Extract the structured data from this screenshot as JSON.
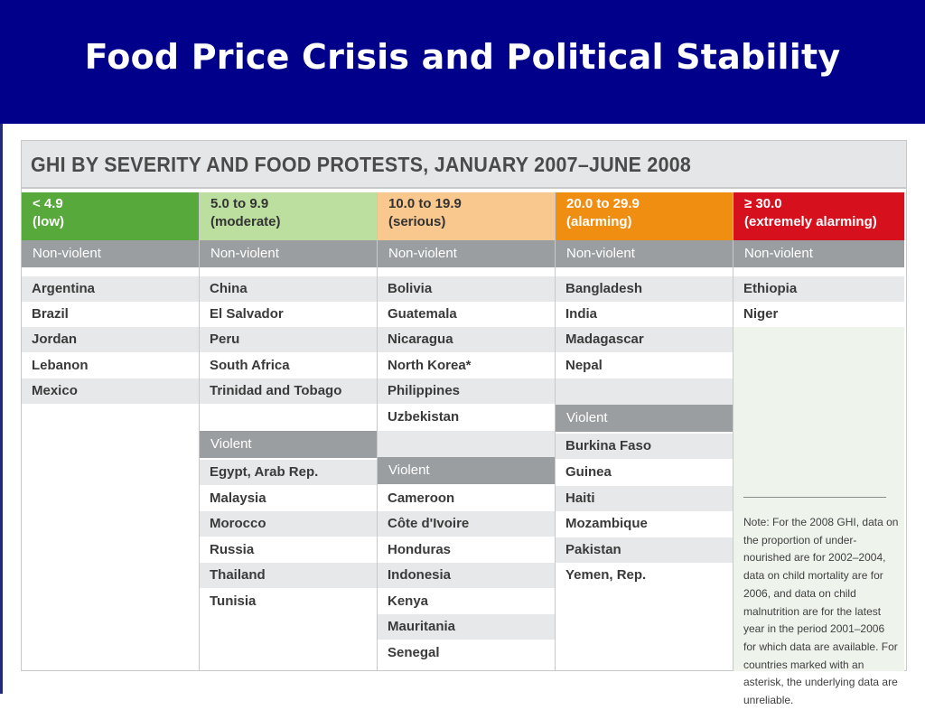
{
  "slide": {
    "title": "Food Price Crisis and Political Stability"
  },
  "figure": {
    "title": "GHI BY SEVERITY AND FOOD PROTESTS, JANUARY 2007–JUNE 2008",
    "columns": [
      {
        "range": "< 4.9",
        "label": "(low)",
        "color": "#56a93a",
        "nonviolent_label": "Non-violent",
        "nonviolent": [
          "Argentina",
          "Brazil",
          "Jordan",
          "Lebanon",
          "Mexico"
        ]
      },
      {
        "range": "5.0 to 9.9",
        "label": "(moderate)",
        "color": "#bcdf9f",
        "nonviolent_label": "Non-violent",
        "nonviolent": [
          "China",
          "El Salvador",
          "Peru",
          "South Africa",
          "Trinidad and Tobago"
        ],
        "violent_label": "Violent",
        "violent": [
          "Egypt, Arab Rep.",
          "Malaysia",
          "Morocco",
          "Russia",
          "Thailand",
          "Tunisia"
        ]
      },
      {
        "range": "10.0 to 19.9",
        "label": "(serious)",
        "color": "#f9c88f",
        "nonviolent_label": "Non-violent",
        "nonviolent": [
          "Bolivia",
          "Guatemala",
          "Nicaragua",
          "North Korea*",
          "Philippines",
          "Uzbekistan"
        ],
        "violent_label": "Violent",
        "violent": [
          "Cameroon",
          "Côte d'Ivoire",
          "Honduras",
          "Indonesia",
          "Kenya",
          "Mauritania",
          "Senegal"
        ]
      },
      {
        "range": "20.0 to 29.9",
        "label": "(alarming)",
        "color": "#f08e12",
        "nonviolent_label": "Non-violent",
        "nonviolent": [
          "Bangladesh",
          "India",
          "Madagascar",
          "Nepal"
        ],
        "violent_label": "Violent",
        "violent": [
          "Burkina Faso",
          "Guinea",
          "Haiti",
          "Mozambique",
          "Pakistan",
          "Yemen, Rep."
        ]
      },
      {
        "range": "≥ 30.0",
        "label": "(extremely alarming)",
        "color": "#d7101d",
        "nonviolent_label": "Non-violent",
        "nonviolent": [
          "Ethiopia",
          "Niger"
        ]
      }
    ],
    "note": "Note: For the 2008 GHI, data on the proportion of under-nourished are for 2002–2004, data on child mortality are for 2006, and data on child malnutrition are for the latest year in the period 2001–2006 for which data are available. For countries marked with an asterisk, the underlying data are unreliable."
  }
}
